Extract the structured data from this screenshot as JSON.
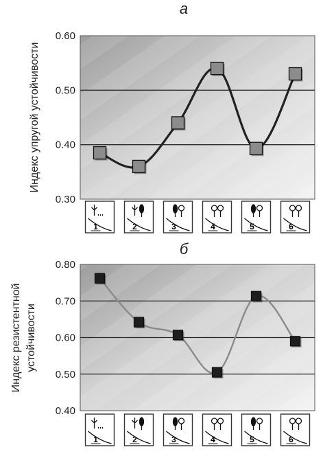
{
  "chart_data": [
    {
      "type": "line",
      "panel": "a",
      "ylabel": "Индекс упругой устойчивости",
      "categories": [
        "1",
        "2",
        "3",
        "4",
        "5",
        "6"
      ],
      "values": [
        0.385,
        0.36,
        0.44,
        0.54,
        0.393,
        0.53
      ],
      "ylim": [
        0.3,
        0.6
      ],
      "yticks": [
        "0.30",
        "0.40",
        "0.50",
        "0.60"
      ],
      "grid": true,
      "marker_color": "#8c8c8c",
      "line_color": "#222222"
    },
    {
      "type": "line",
      "panel": "б",
      "ylabel": [
        "Индекс резистентной",
        "устойчивости"
      ],
      "categories": [
        "1",
        "2",
        "3",
        "4",
        "5",
        "6"
      ],
      "values": [
        0.762,
        0.642,
        0.607,
        0.505,
        0.713,
        0.59
      ],
      "ylim": [
        0.4,
        0.8
      ],
      "yticks": [
        "0.40",
        "0.50",
        "0.60",
        "0.70",
        "0.80"
      ],
      "grid": true,
      "marker_color": "#1e1e1e",
      "line_color": "#8a8a8a"
    }
  ]
}
